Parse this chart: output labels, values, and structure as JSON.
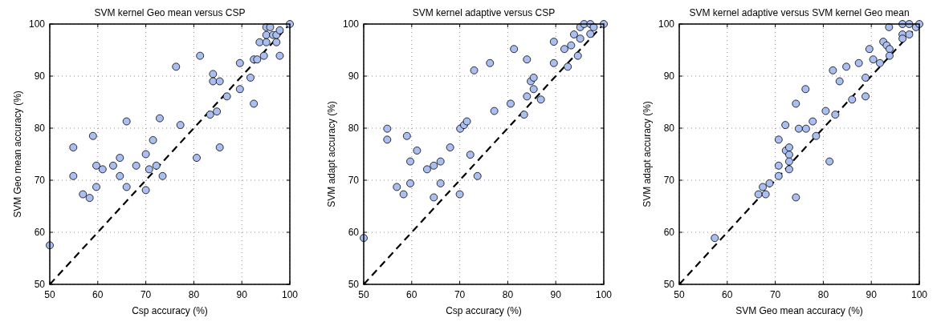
{
  "chart_data": [
    {
      "type": "scatter",
      "title": "SVM kernel Geo mean versus CSP",
      "xlabel": "Csp accuracy (%)",
      "ylabel": "SVM Geo mean accuracy (%)",
      "xlim": [
        50,
        100
      ],
      "ylim": [
        50,
        100
      ],
      "xticks": [
        50,
        60,
        70,
        80,
        90,
        100
      ],
      "yticks": [
        50,
        60,
        70,
        80,
        90,
        100
      ],
      "grid": true,
      "series": [
        {
          "type": "scatter",
          "marker": "circle",
          "color": "#aabef0",
          "x": [
            50,
            54.9,
            54.9,
            56.9,
            58.3,
            59.0,
            59.7,
            59.7,
            61.0,
            63.2,
            64.6,
            64.6,
            66.0,
            66.0,
            68.0,
            70.0,
            70.0,
            70.7,
            71.5,
            72.2,
            72.9,
            73.5,
            76.3,
            77.2,
            80.6,
            81.3,
            83.4,
            84.0,
            84.0,
            84.8,
            85.4,
            85.4,
            86.9,
            89.6,
            89.6,
            91.8,
            92.5,
            92.5,
            93.2,
            94.6,
            93.7,
            95.1,
            95.1,
            95.1,
            95.9,
            96.5,
            97.2,
            97.2,
            97.9,
            97.9,
            100
          ],
          "values": [
            57.5,
            76.3,
            70.8,
            67.3,
            66.6,
            78.5,
            72.8,
            68.7,
            72.1,
            72.8,
            74.3,
            70.8,
            68.7,
            81.3,
            72.8,
            68.1,
            75.0,
            72.1,
            77.7,
            72.8,
            81.9,
            70.8,
            91.8,
            80.6,
            74.3,
            93.9,
            82.6,
            90.4,
            89.0,
            83.2,
            89.0,
            76.3,
            86.1,
            87.5,
            92.5,
            89.7,
            84.7,
            93.2,
            93.2,
            93.9,
            96.5,
            96.5,
            97.9,
            99.4,
            99.4,
            97.9,
            96.5,
            97.9,
            93.9,
            98.8,
            100
          ]
        },
        {
          "type": "line",
          "color": "#000000",
          "line_style": "dashed",
          "x": [
            50,
            100
          ],
          "values": [
            50,
            100
          ]
        }
      ]
    },
    {
      "type": "scatter",
      "title": "SVM kernel adaptive versus CSP",
      "xlabel": "Csp accuracy (%)",
      "ylabel": "SVM adapt accuracy (%)",
      "xlim": [
        50,
        100
      ],
      "ylim": [
        50,
        100
      ],
      "xticks": [
        50,
        60,
        70,
        80,
        90,
        100
      ],
      "yticks": [
        50,
        60,
        70,
        80,
        90,
        100
      ],
      "grid": true,
      "series": [
        {
          "type": "scatter",
          "marker": "circle",
          "color": "#aabef0",
          "x": [
            50,
            54.9,
            54.9,
            56.9,
            58.3,
            59.0,
            59.7,
            59.7,
            61.1,
            63.2,
            64.6,
            64.6,
            66.0,
            66.0,
            68.0,
            70.0,
            70.1,
            70.9,
            71.5,
            72.2,
            73.0,
            73.7,
            76.3,
            77.2,
            80.6,
            81.3,
            83.4,
            84.0,
            84.0,
            84.8,
            85.4,
            85.4,
            86.9,
            89.6,
            89.6,
            91.8,
            92.5,
            93.2,
            94.6,
            93.8,
            95.1,
            95.1,
            95.9,
            97.2,
            97.2,
            97.9,
            100
          ],
          "values": [
            58.9,
            79.9,
            77.8,
            68.7,
            67.3,
            78.5,
            73.6,
            69.4,
            75.7,
            72.1,
            72.8,
            66.7,
            73.6,
            69.4,
            76.3,
            67.3,
            79.9,
            80.6,
            81.3,
            74.9,
            91.1,
            70.8,
            92.5,
            83.3,
            84.7,
            95.2,
            82.6,
            93.2,
            86.1,
            89.0,
            89.7,
            87.5,
            85.5,
            96.6,
            92.5,
            95.2,
            91.8,
            95.9,
            93.9,
            98.0,
            97.2,
            99.4,
            100,
            100,
            98.1,
            99.4,
            100
          ]
        },
        {
          "type": "line",
          "color": "#000000",
          "line_style": "dashed",
          "x": [
            50,
            100
          ],
          "values": [
            50,
            100
          ]
        }
      ]
    },
    {
      "type": "scatter",
      "title": "SVM kernel adaptive versus SVM kernel Geo mean",
      "xlabel": "SVM Geo mean accuracy (%)",
      "ylabel": "SVM adapt accuracy (%)",
      "xlim": [
        50,
        100
      ],
      "ylim": [
        50,
        100
      ],
      "xticks": [
        50,
        60,
        70,
        80,
        90,
        100
      ],
      "yticks": [
        50,
        60,
        70,
        80,
        90,
        100
      ],
      "grid": true,
      "series": [
        {
          "type": "scatter",
          "marker": "circle",
          "color": "#aabef0",
          "x": [
            57.4,
            66.5,
            67.4,
            68.0,
            68.8,
            70.7,
            70.7,
            70.7,
            72.1,
            72.2,
            72.9,
            72.9,
            72.9,
            72.9,
            74.3,
            74.3,
            74.9,
            76.3,
            76.4,
            77.8,
            78.5,
            80.5,
            81.3,
            82.0,
            82.5,
            83.4,
            84.8,
            86.0,
            87.4,
            88.8,
            88.8,
            89.6,
            90.4,
            91.8,
            92.5,
            93.2,
            93.8,
            93.8,
            93.7,
            96.5,
            96.5,
            96.5,
            97.9,
            97.9,
            99.3,
            100
          ],
          "values": [
            58.9,
            67.3,
            68.7,
            67.3,
            69.4,
            70.8,
            72.8,
            77.8,
            80.6,
            75.7,
            76.3,
            74.9,
            73.6,
            72.1,
            66.7,
            84.7,
            79.9,
            87.5,
            79.9,
            81.3,
            78.5,
            83.3,
            73.6,
            91.1,
            82.6,
            89.0,
            91.8,
            85.5,
            92.5,
            89.7,
            86.1,
            95.2,
            93.2,
            92.5,
            96.6,
            95.9,
            95.2,
            93.9,
            99.4,
            100,
            98.0,
            97.2,
            100,
            98.0,
            99.4,
            100
          ]
        },
        {
          "type": "line",
          "color": "#000000",
          "line_style": "dashed",
          "x": [
            50,
            100
          ],
          "values": [
            50,
            100
          ]
        }
      ]
    }
  ]
}
